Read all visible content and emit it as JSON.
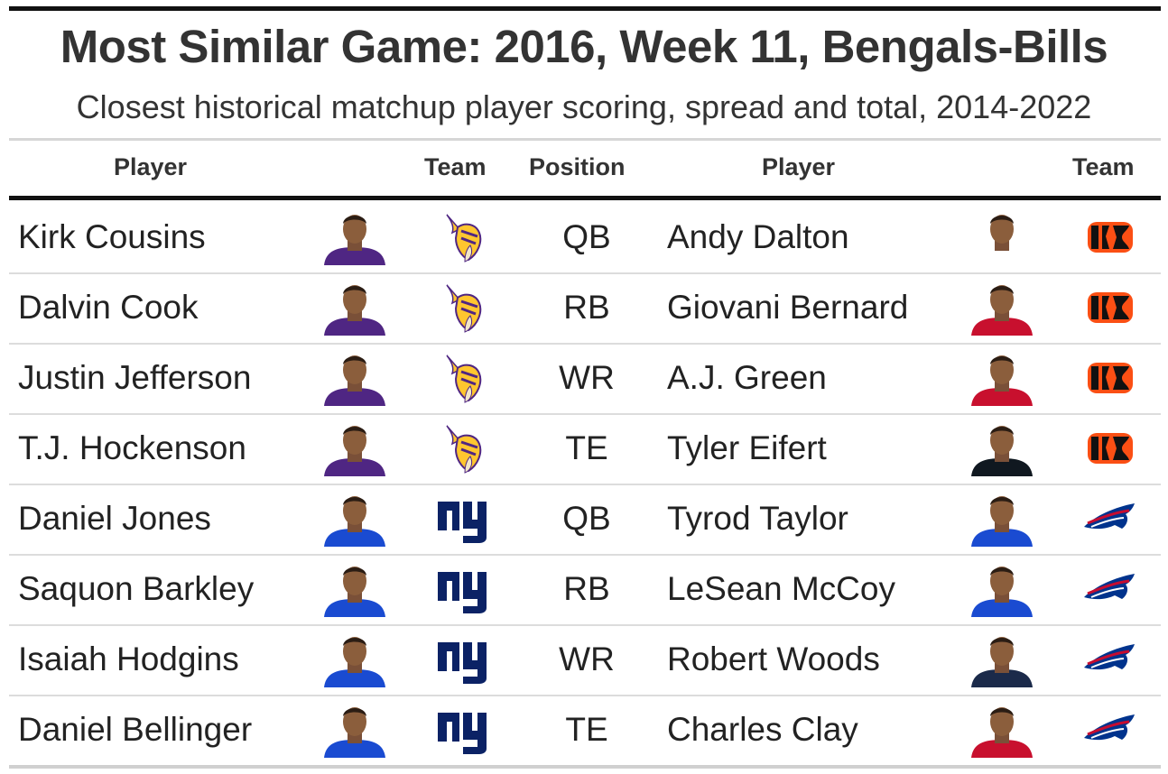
{
  "title": "Most Similar Game: 2016, Week 11, Bengals-Bills",
  "subtitle": "Closest historical matchup player scoring, spread and total, 2014-2022",
  "headers": {
    "player1": "Player",
    "team1": "Team",
    "position": "Position",
    "player2": "Player",
    "team2": "Team"
  },
  "colors": {
    "vikings_purple": "#4f2683",
    "vikings_gold": "#ffc62f",
    "giants_blue": "#0b2265",
    "bengals_orange": "#fb4f14",
    "bills_blue": "#00338d",
    "bills_red": "#c60c30"
  },
  "rows": [
    {
      "player": "Kirk Cousins",
      "team": "Vikings",
      "position": "QB",
      "match": "Andy Dalton",
      "match_team": "Bengals",
      "jersey1": "#4f2683",
      "jersey2": "#ffffff",
      "team_icon": "vikings-logo-icon",
      "match_icon": "bengals-logo-icon"
    },
    {
      "player": "Dalvin Cook",
      "team": "Vikings",
      "position": "RB",
      "match": "Giovani Bernard",
      "match_team": "Bengals",
      "jersey1": "#4f2683",
      "jersey2": "#c8102e",
      "team_icon": "vikings-logo-icon",
      "match_icon": "bengals-logo-icon"
    },
    {
      "player": "Justin Jefferson",
      "team": "Vikings",
      "position": "WR",
      "match": "A.J. Green",
      "match_team": "Bengals",
      "jersey1": "#4f2683",
      "jersey2": "#c8102e",
      "team_icon": "vikings-logo-icon",
      "match_icon": "bengals-logo-icon"
    },
    {
      "player": "T.J. Hockenson",
      "team": "Vikings",
      "position": "TE",
      "match": "Tyler Eifert",
      "match_team": "Bengals",
      "jersey1": "#4f2683",
      "jersey2": "#101820",
      "team_icon": "vikings-logo-icon",
      "match_icon": "bengals-logo-icon"
    },
    {
      "player": "Daniel Jones",
      "team": "Giants",
      "position": "QB",
      "match": "Tyrod Taylor",
      "match_team": "Bills",
      "jersey1": "#1a4bd1",
      "jersey2": "#1a4bd1",
      "team_icon": "giants-logo-icon",
      "match_icon": "bills-logo-icon"
    },
    {
      "player": "Saquon Barkley",
      "team": "Giants",
      "position": "RB",
      "match": "LeSean McCoy",
      "match_team": "Bills",
      "jersey1": "#1a4bd1",
      "jersey2": "#1a4bd1",
      "team_icon": "giants-logo-icon",
      "match_icon": "bills-logo-icon"
    },
    {
      "player": "Isaiah Hodgins",
      "team": "Giants",
      "position": "WR",
      "match": "Robert Woods",
      "match_team": "Bills",
      "jersey1": "#1a4bd1",
      "jersey2": "#1b2a4a",
      "team_icon": "giants-logo-icon",
      "match_icon": "bills-logo-icon"
    },
    {
      "player": "Daniel Bellinger",
      "team": "Giants",
      "position": "TE",
      "match": "Charles Clay",
      "match_team": "Bills",
      "jersey1": "#1a4bd1",
      "jersey2": "#c8102e",
      "team_icon": "giants-logo-icon",
      "match_icon": "bills-logo-icon"
    }
  ]
}
